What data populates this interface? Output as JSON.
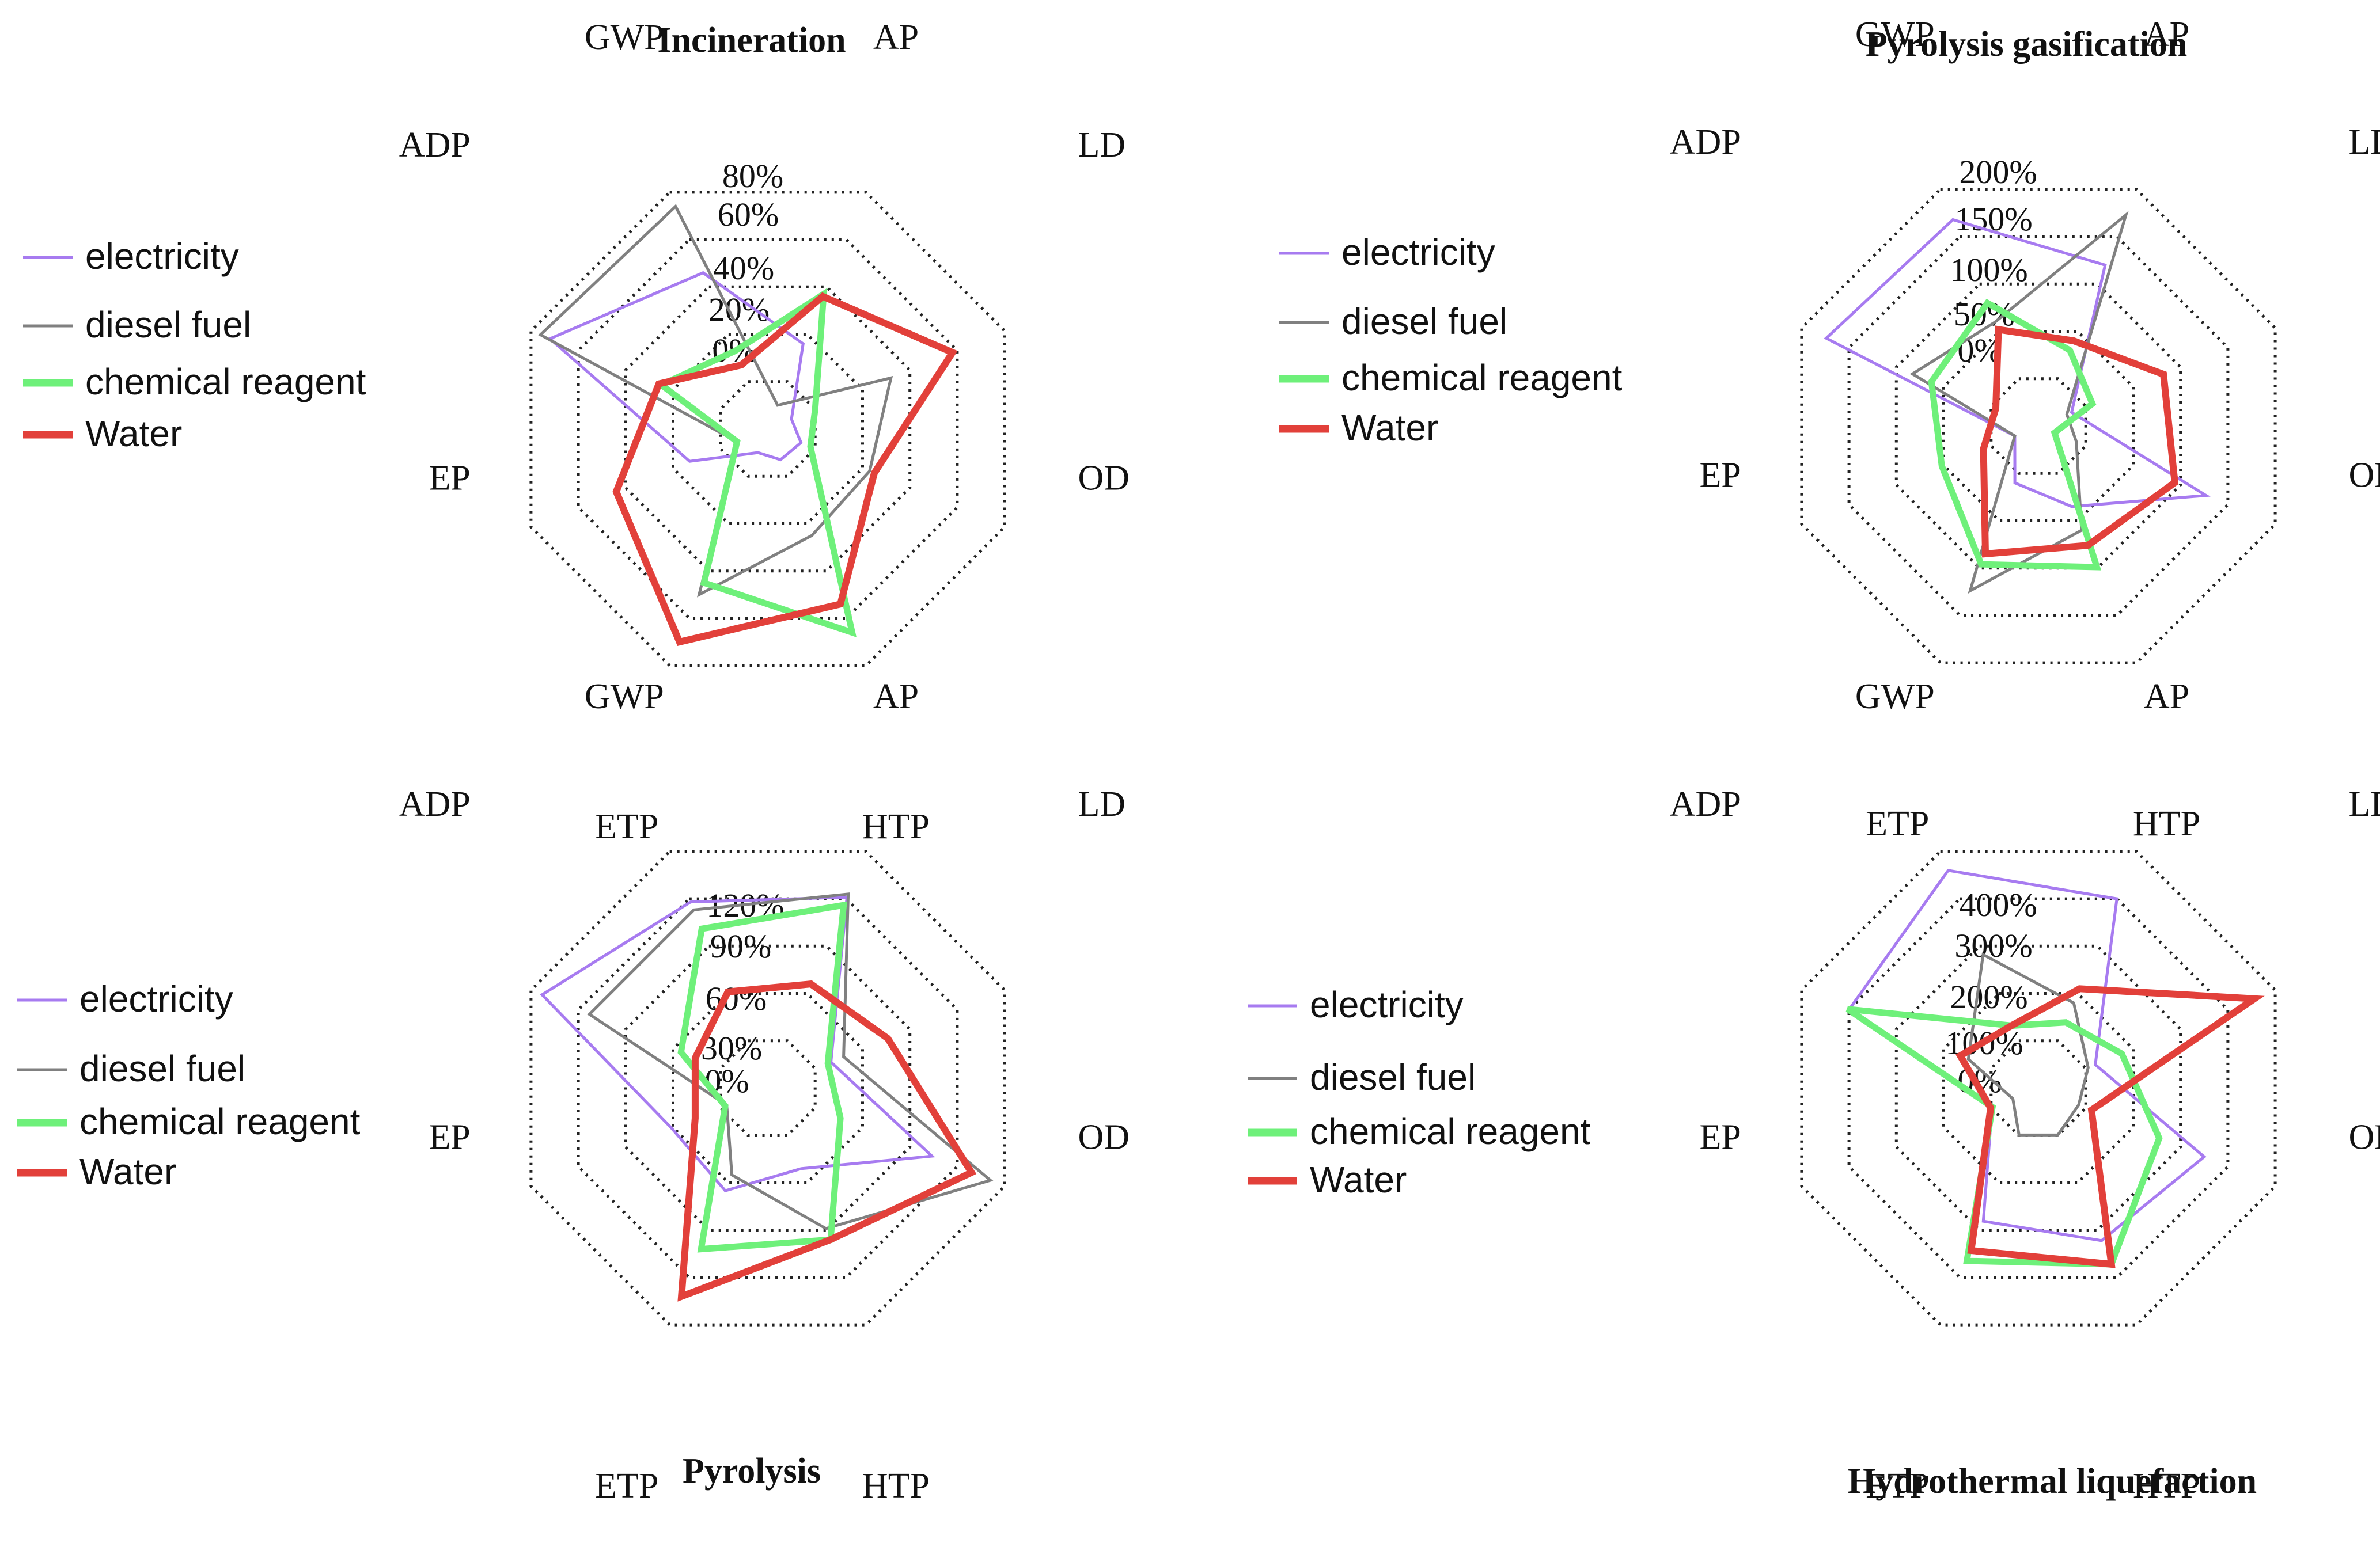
{
  "chart_data": [
    {
      "type": "radar",
      "title": "Incineration",
      "axes": [
        "GWP",
        "AP",
        "LD",
        "OD",
        "HTP",
        "ETP",
        "EP",
        "ADP"
      ],
      "ticks": [
        "0%",
        "20%",
        "40%",
        "60%",
        "80%"
      ],
      "rmax": 100,
      "legend_position": "left",
      "series": [
        {
          "name": "electricity",
          "color": "#a77bf0",
          "values": [
            66,
            36,
            10,
            14,
            13,
            10,
            33,
            92
          ]
        },
        {
          "name": "diesel fuel",
          "color": "#808080",
          "values": [
            94,
            10,
            52,
            43,
            45,
            70,
            13,
            96
          ]
        },
        {
          "name": "chemical reagent",
          "color": "#6ef07a",
          "values": [
            33,
            57,
            20,
            18,
            86,
            65,
            13,
            45
          ]
        },
        {
          "name": "Water",
          "color": "#e2403a",
          "values": [
            27,
            56,
            78,
            45,
            74,
            90,
            64,
            46
          ]
        }
      ]
    },
    {
      "type": "radar",
      "title": "Pyrolysis gasification",
      "axes": [
        "GWP",
        "AP",
        "LD",
        "OD",
        "HTP",
        "ETP",
        "EP",
        "ADP"
      ],
      "ticks": [
        "0%",
        "50%",
        "100%",
        "150%",
        "200%"
      ],
      "rmax": 250,
      "legend_position": "left",
      "series": [
        {
          "name": "electricity",
          "color": "#a77bf0",
          "values": [
            218,
            170,
            35,
            177,
            85,
            60,
            25,
            224
          ]
        },
        {
          "name": "diesel fuel",
          "color": "#808080",
          "values": [
            110,
            223,
            30,
            40,
            110,
            174,
            25,
            133
          ]
        },
        {
          "name": "chemical reagent",
          "color": "#6ef07a",
          "values": [
            130,
            80,
            57,
            17,
            149,
            146,
            102,
            113
          ]
        },
        {
          "name": "Water",
          "color": "#e2403a",
          "values": [
            102,
            90,
            132,
            144,
            126,
            135,
            58,
            45
          ]
        }
      ]
    },
    {
      "type": "radar",
      "title": "Pyrolysis",
      "axes": [
        "GWP",
        "AP",
        "LD",
        "OD",
        "HTP",
        "ETP",
        "EP",
        "ADP"
      ],
      "ticks": [
        "0%",
        "30%",
        "60%",
        "90%",
        "120%"
      ],
      "rmax": 150,
      "legend_position": "left",
      "series": [
        {
          "name": "electricity",
          "color": "#a77bf0",
          "values": [
            118,
            121,
            40,
            104,
            51,
            65,
            61,
            143
          ]
        },
        {
          "name": "diesel fuel",
          "color": "#808080",
          "values": [
            113,
            123,
            48,
            141,
            89,
            55,
            26,
            113
          ]
        },
        {
          "name": "chemical reagent",
          "color": "#6ef07a",
          "values": [
            101,
            116,
            38,
            46,
            96,
            102,
            27,
            55
          ]
        },
        {
          "name": "Water",
          "color": "#e2403a",
          "values": [
            61,
            66,
            76,
            129,
            96,
            132,
            46,
            46
          ]
        }
      ]
    },
    {
      "type": "radar",
      "title": "Hydrothermal liquefaction",
      "axes": [
        "GWP",
        "AP",
        "LD",
        "OD",
        "HTP",
        "ETP",
        "EP",
        "ADP"
      ],
      "ticks": [
        "0%",
        "100%",
        "200%",
        "300%",
        "400%"
      ],
      "rmax": 500,
      "legend_position": "left",
      "series": [
        {
          "name": "electricity",
          "color": "#a77bf0",
          "values": [
            460,
            400,
            120,
            350,
            322,
            281,
            98,
            400
          ]
        },
        {
          "name": "diesel fuel",
          "color": "#808080",
          "values": [
            282,
            180,
            105,
            85,
            99,
            99,
            54,
            148
          ]
        },
        {
          "name": "chemical reagent",
          "color": "#6ef07a",
          "values": [
            132,
            139,
            176,
            255,
            372,
            365,
            97,
            403
          ]
        },
        {
          "name": "Water",
          "color": "#e2403a",
          "values": [
            133,
            210,
            456,
            112,
            372,
            343,
            101,
            165
          ]
        }
      ]
    }
  ]
}
